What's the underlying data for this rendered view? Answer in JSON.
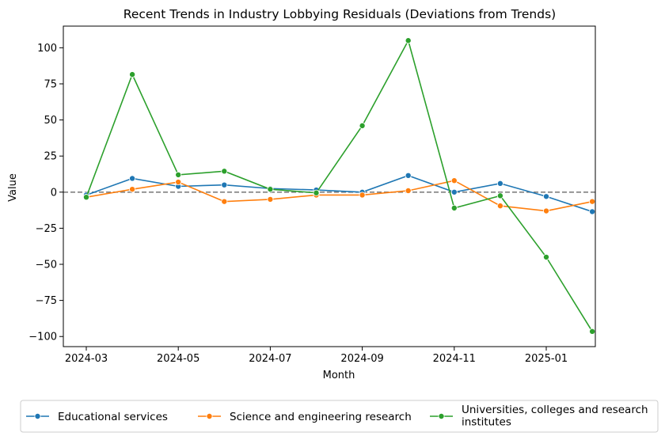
{
  "chart_data": {
    "type": "line",
    "title": "Recent Trends in Industry Lobbying Residuals (Deviations from Trends)",
    "xlabel": "Month",
    "ylabel": "Value",
    "x": [
      "2024-03",
      "2024-04",
      "2024-05",
      "2024-06",
      "2024-07",
      "2024-08",
      "2024-09",
      "2024-10",
      "2024-11",
      "2024-12",
      "2025-01",
      "2025-02"
    ],
    "x_tick_labels": [
      "2024-03",
      "2024-05",
      "2024-07",
      "2024-09",
      "2024-11",
      "2025-01"
    ],
    "y_ticks": [
      100,
      75,
      50,
      25,
      0,
      -25,
      -50,
      -75,
      -100
    ],
    "y_tick_labels": [
      "100",
      "75",
      "50",
      "25",
      "0",
      "−25",
      "−50",
      "−75",
      "−100"
    ],
    "ylim": [
      -107,
      115
    ],
    "reference_line": {
      "y": 0,
      "style": "dashed",
      "color": "#808080"
    },
    "series": [
      {
        "name": "Educational services",
        "color": "#1f77b4",
        "values": [
          -2,
          9.5,
          4,
          5,
          2.5,
          1.5,
          0,
          11.5,
          0,
          6,
          -3,
          -13.5
        ]
      },
      {
        "name": "Science and engineering research",
        "color": "#ff7f0e",
        "values": [
          -3.5,
          2,
          7,
          -6.5,
          -5,
          -2,
          -2,
          1,
          8,
          -9.5,
          -13,
          -6.5
        ]
      },
      {
        "name": "Universities, colleges and research institutes",
        "color": "#2ca02c",
        "legend_lines": [
          "Universities, colleges and research",
          "institutes"
        ],
        "values": [
          -3.5,
          81.5,
          12,
          14.5,
          2,
          -0.5,
          46,
          105,
          -11,
          -2.5,
          -45,
          -96.5
        ]
      }
    ],
    "legend_position": "bottom-center",
    "grid": false
  }
}
